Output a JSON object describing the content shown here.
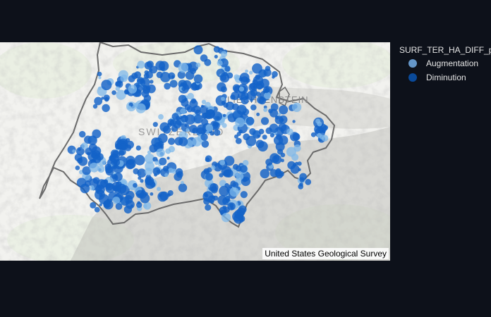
{
  "map": {
    "labels": {
      "country_a": "LIECHTENSTEIN",
      "country_b": "SWITZERLAND"
    },
    "attribution": "United States Geological Survey",
    "colors": {
      "background": "#0d111a",
      "terrain": "#f3f3f1",
      "border": "#6b6b6b",
      "marker_light": "#7fb8ea",
      "marker_dark": "#1463c8"
    }
  },
  "legend": {
    "title": "SURF_TER_HA_DIFF_p",
    "items": [
      {
        "label": "Augmentation",
        "color": "#6496c8"
      },
      {
        "label": "Diminution",
        "color": "#0a4a9a"
      }
    ]
  }
}
